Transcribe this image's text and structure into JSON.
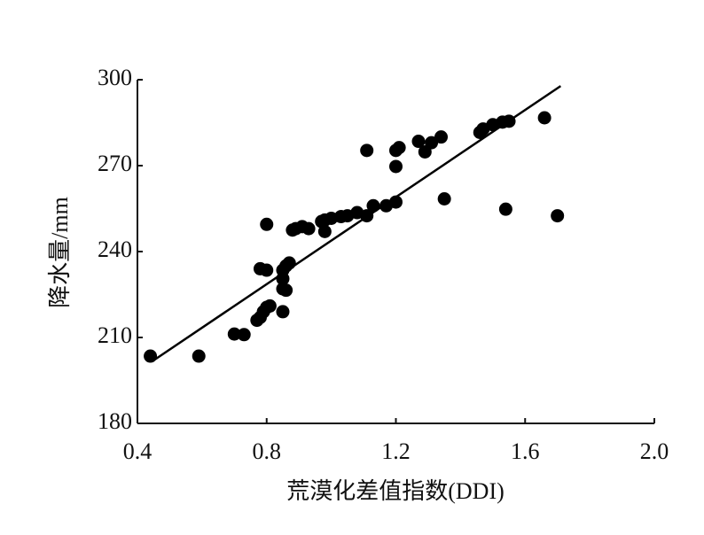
{
  "chart_data": {
    "type": "scatter",
    "x_label": "荒漠化差值指数(DDI)",
    "y_label": "降水量/mm",
    "color": "#000000",
    "x": [
      0.44,
      0.59,
      0.7,
      0.73,
      0.77,
      0.78,
      0.79,
      0.8,
      0.81,
      0.78,
      0.8,
      0.8,
      0.85,
      0.85,
      0.86,
      0.85,
      0.85,
      0.86,
      0.87,
      0.88,
      0.89,
      0.91,
      0.93,
      0.97,
      0.98,
      0.98,
      1.0,
      1.03,
      1.05,
      1.08,
      1.11,
      1.13,
      1.17,
      1.2,
      1.11,
      1.2,
      1.2,
      1.21,
      1.27,
      1.29,
      1.31,
      1.34,
      1.35,
      1.46,
      1.47,
      1.5,
      1.53,
      1.55,
      1.54,
      1.66,
      1.7
    ],
    "y": [
      203.5,
      203.5,
      211.2,
      211,
      216,
      217,
      219,
      220.5,
      221,
      234,
      233.5,
      249.5,
      219,
      227,
      226.5,
      230.5,
      233.5,
      235,
      236,
      247.5,
      248,
      248.7,
      248,
      250.5,
      251,
      247,
      251.6,
      252.2,
      252.5,
      253.6,
      252.5,
      256,
      256,
      257.3,
      275.3,
      275.3,
      269.7,
      276.3,
      278.5,
      274.8,
      278,
      280,
      258.4,
      281.6,
      282.8,
      284.3,
      285.2,
      285.5,
      254.8,
      286.7,
      252.5
    ],
    "trendline": {
      "x": [
        0.45,
        1.71
      ],
      "y": [
        202,
        297.8
      ]
    },
    "xlim": [
      0.4,
      2.0
    ],
    "ylim": [
      180,
      300
    ],
    "xticks": [
      0.4,
      0.8,
      1.2,
      1.6,
      {
        "value": 2,
        "label": "2.0"
      }
    ],
    "yticks": [
      180,
      210,
      240,
      270,
      300
    ]
  }
}
